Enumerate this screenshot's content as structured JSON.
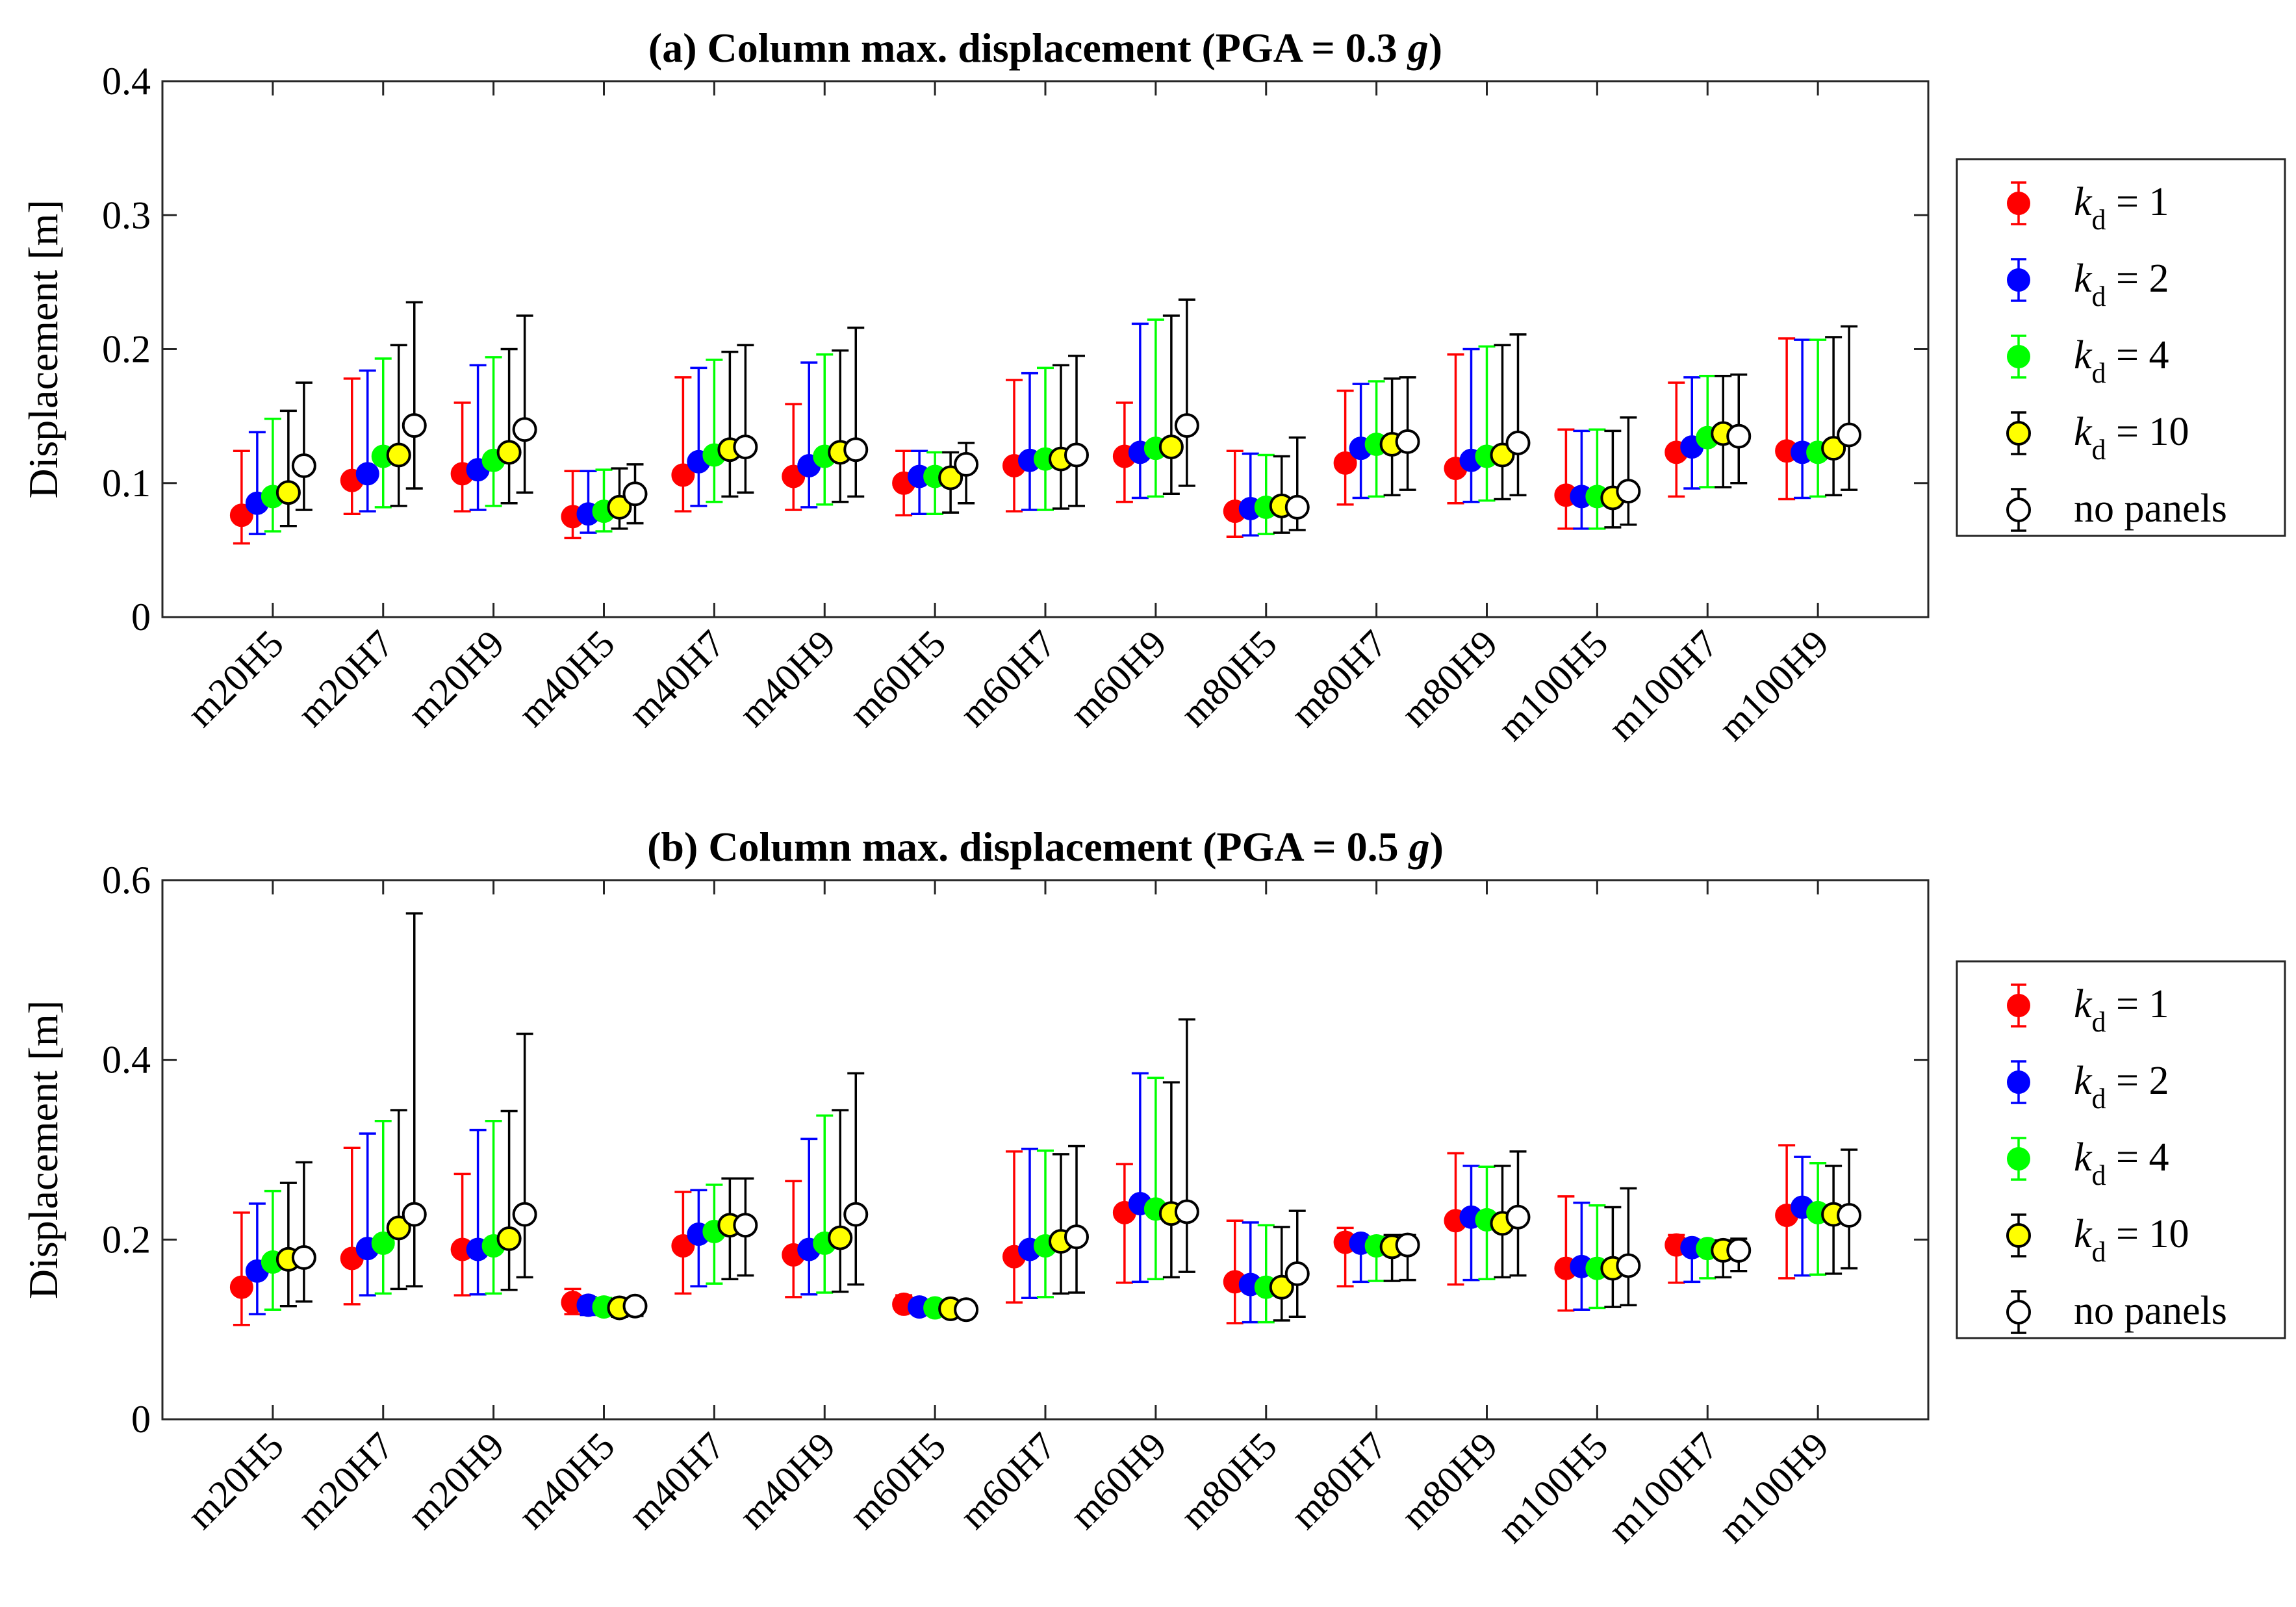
{
  "chart_data": [
    {
      "type": "scatter",
      "title_main": "(a) Column max. displacement (PGA = 0.3",
      "title_g": "g",
      "title_end": ")",
      "ylabel": "Displacement [m]",
      "ylim": [
        0,
        0.4
      ],
      "yticks": [
        0,
        0.1,
        0.2,
        0.3,
        0.4
      ],
      "ytick_labels": [
        "0",
        "0.1",
        "0.2",
        "0.3",
        "0.4"
      ],
      "categories": [
        "m20H5",
        "m20H7",
        "m20H9",
        "m40H5",
        "m40H7",
        "m40H9",
        "m60H5",
        "m60H7",
        "m60H9",
        "m80H5",
        "m80H7",
        "m80H9",
        "m100H5",
        "m100H7",
        "m100H9"
      ],
      "series": [
        {
          "name": "k_d = 1",
          "mean": [
            0.076,
            0.102,
            0.107,
            0.075,
            0.106,
            0.105,
            0.1,
            0.113,
            0.12,
            0.079,
            0.115,
            0.111,
            0.091,
            0.123,
            0.124
          ],
          "low": [
            0.055,
            0.077,
            0.079,
            0.059,
            0.079,
            0.08,
            0.076,
            0.079,
            0.086,
            0.06,
            0.084,
            0.085,
            0.066,
            0.09,
            0.088
          ],
          "high": [
            0.124,
            0.178,
            0.16,
            0.109,
            0.179,
            0.159,
            0.124,
            0.177,
            0.16,
            0.124,
            0.169,
            0.196,
            0.14,
            0.175,
            0.208
          ]
        },
        {
          "name": "k_d = 2",
          "mean": [
            0.085,
            0.107,
            0.11,
            0.077,
            0.116,
            0.113,
            0.105,
            0.117,
            0.123,
            0.081,
            0.126,
            0.117,
            0.09,
            0.127,
            0.123
          ],
          "low": [
            0.062,
            0.079,
            0.08,
            0.063,
            0.083,
            0.082,
            0.077,
            0.08,
            0.089,
            0.061,
            0.089,
            0.086,
            0.066,
            0.096,
            0.089
          ],
          "high": [
            0.138,
            0.184,
            0.188,
            0.109,
            0.186,
            0.19,
            0.124,
            0.182,
            0.219,
            0.122,
            0.174,
            0.2,
            0.139,
            0.179,
            0.207
          ]
        },
        {
          "name": "k_d = 4",
          "mean": [
            0.09,
            0.12,
            0.117,
            0.079,
            0.121,
            0.12,
            0.105,
            0.118,
            0.126,
            0.082,
            0.129,
            0.12,
            0.09,
            0.134,
            0.123
          ],
          "low": [
            0.064,
            0.082,
            0.083,
            0.064,
            0.086,
            0.084,
            0.077,
            0.08,
            0.09,
            0.062,
            0.09,
            0.087,
            0.066,
            0.097,
            0.09
          ],
          "high": [
            0.148,
            0.193,
            0.194,
            0.11,
            0.192,
            0.196,
            0.123,
            0.186,
            0.222,
            0.121,
            0.176,
            0.202,
            0.14,
            0.18,
            0.207
          ]
        },
        {
          "name": "k_d = 10",
          "mean": [
            0.093,
            0.121,
            0.123,
            0.082,
            0.125,
            0.123,
            0.104,
            0.118,
            0.127,
            0.083,
            0.129,
            0.121,
            0.089,
            0.137,
            0.126
          ],
          "low": [
            0.068,
            0.083,
            0.085,
            0.066,
            0.09,
            0.086,
            0.078,
            0.081,
            0.092,
            0.063,
            0.091,
            0.088,
            0.067,
            0.097,
            0.091
          ],
          "high": [
            0.154,
            0.203,
            0.2,
            0.111,
            0.198,
            0.199,
            0.123,
            0.188,
            0.225,
            0.12,
            0.178,
            0.203,
            0.139,
            0.18,
            0.209
          ]
        },
        {
          "name": "no panels",
          "mean": [
            0.113,
            0.143,
            0.14,
            0.092,
            0.127,
            0.125,
            0.114,
            0.121,
            0.143,
            0.082,
            0.131,
            0.13,
            0.094,
            0.135,
            0.136
          ],
          "low": [
            0.08,
            0.096,
            0.093,
            0.07,
            0.093,
            0.09,
            0.085,
            0.083,
            0.098,
            0.065,
            0.095,
            0.091,
            0.069,
            0.1,
            0.095
          ],
          "high": [
            0.175,
            0.235,
            0.225,
            0.114,
            0.203,
            0.216,
            0.13,
            0.195,
            0.237,
            0.134,
            0.179,
            0.211,
            0.149,
            0.181,
            0.217
          ]
        }
      ],
      "legend_location": "right outside"
    },
    {
      "type": "scatter",
      "title_main": "(b) Column max. displacement (PGA = 0.5",
      "title_g": "g",
      "title_end": ")",
      "ylabel": "Displacement [m]",
      "ylim": [
        0,
        0.6
      ],
      "yticks": [
        0,
        0.2,
        0.4,
        0.6
      ],
      "ytick_labels": [
        "0",
        "0.2",
        "0.4",
        "0.6"
      ],
      "categories": [
        "m20H5",
        "m20H7",
        "m20H9",
        "m40H5",
        "m40H7",
        "m40H9",
        "m60H5",
        "m60H7",
        "m60H9",
        "m80H5",
        "m80H7",
        "m80H9",
        "m100H5",
        "m100H7",
        "m100H9"
      ],
      "series": [
        {
          "name": "k_d = 1",
          "mean": [
            0.147,
            0.179,
            0.189,
            0.13,
            0.193,
            0.183,
            0.128,
            0.181,
            0.23,
            0.153,
            0.197,
            0.221,
            0.168,
            0.194,
            0.227
          ],
          "low": [
            0.105,
            0.128,
            0.138,
            0.117,
            0.14,
            0.136,
            0.12,
            0.13,
            0.152,
            0.107,
            0.148,
            0.15,
            0.121,
            0.152,
            0.157
          ],
          "high": [
            0.23,
            0.302,
            0.273,
            0.145,
            0.253,
            0.265,
            0.138,
            0.298,
            0.284,
            0.221,
            0.213,
            0.296,
            0.248,
            0.205,
            0.305
          ]
        },
        {
          "name": "k_d = 2",
          "mean": [
            0.165,
            0.19,
            0.189,
            0.127,
            0.206,
            0.189,
            0.125,
            0.189,
            0.24,
            0.15,
            0.196,
            0.225,
            0.17,
            0.191,
            0.236
          ],
          "low": [
            0.117,
            0.138,
            0.139,
            0.116,
            0.148,
            0.139,
            0.119,
            0.135,
            0.153,
            0.108,
            0.153,
            0.155,
            0.122,
            0.153,
            0.16
          ],
          "high": [
            0.24,
            0.318,
            0.322,
            0.136,
            0.255,
            0.312,
            0.131,
            0.301,
            0.385,
            0.219,
            0.203,
            0.282,
            0.241,
            0.2,
            0.292
          ]
        },
        {
          "name": "k_d = 4",
          "mean": [
            0.175,
            0.196,
            0.193,
            0.125,
            0.209,
            0.196,
            0.124,
            0.193,
            0.234,
            0.147,
            0.193,
            0.222,
            0.168,
            0.19,
            0.23
          ],
          "low": [
            0.122,
            0.14,
            0.14,
            0.116,
            0.151,
            0.141,
            0.119,
            0.136,
            0.156,
            0.108,
            0.154,
            0.156,
            0.124,
            0.157,
            0.161
          ],
          "high": [
            0.254,
            0.332,
            0.332,
            0.135,
            0.261,
            0.338,
            0.13,
            0.299,
            0.38,
            0.216,
            0.203,
            0.281,
            0.238,
            0.199,
            0.285
          ]
        },
        {
          "name": "k_d = 10",
          "mean": [
            0.178,
            0.213,
            0.201,
            0.124,
            0.216,
            0.202,
            0.123,
            0.198,
            0.229,
            0.147,
            0.192,
            0.218,
            0.168,
            0.188,
            0.228
          ],
          "low": [
            0.126,
            0.145,
            0.144,
            0.114,
            0.156,
            0.142,
            0.118,
            0.14,
            0.158,
            0.11,
            0.154,
            0.158,
            0.125,
            0.158,
            0.162
          ],
          "high": [
            0.263,
            0.344,
            0.343,
            0.134,
            0.268,
            0.344,
            0.129,
            0.295,
            0.375,
            0.214,
            0.205,
            0.282,
            0.236,
            0.199,
            0.282
          ]
        },
        {
          "name": "no panels",
          "mean": [
            0.18,
            0.228,
            0.228,
            0.126,
            0.216,
            0.228,
            0.122,
            0.203,
            0.231,
            0.162,
            0.194,
            0.225,
            0.171,
            0.188,
            0.227
          ],
          "low": [
            0.131,
            0.148,
            0.158,
            0.115,
            0.16,
            0.15,
            0.117,
            0.141,
            0.164,
            0.114,
            0.155,
            0.16,
            0.127,
            0.165,
            0.168
          ],
          "high": [
            0.286,
            0.563,
            0.429,
            0.135,
            0.268,
            0.385,
            0.128,
            0.304,
            0.445,
            0.232,
            0.205,
            0.298,
            0.257,
            0.201,
            0.3
          ]
        }
      ],
      "legend_location": "right outside"
    }
  ],
  "legend": {
    "items": [
      {
        "k": "k",
        "sub": "d",
        "rest": " = 1",
        "color": "#ff0000",
        "edge": "#ff0000"
      },
      {
        "k": "k",
        "sub": "d",
        "rest": " = 2",
        "color": "#0000ff",
        "edge": "#0000ff"
      },
      {
        "k": "k",
        "sub": "d",
        "rest": " = 4",
        "color": "#00ff00",
        "edge": "#00ff00"
      },
      {
        "k": "k",
        "sub": "d",
        "rest": " = 10",
        "color": "#ffff00",
        "edge": "#000000"
      },
      {
        "k": "",
        "sub": "",
        "rest": "no panels",
        "color": "#ffffff",
        "edge": "#000000"
      }
    ]
  }
}
